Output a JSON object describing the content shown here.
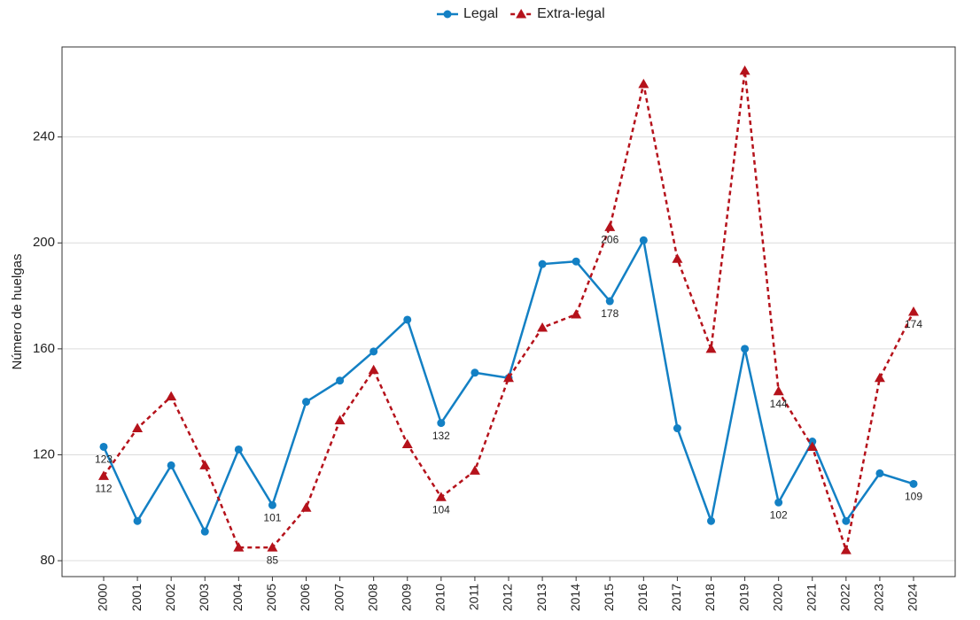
{
  "chart_data": {
    "type": "line",
    "y_label": "Número de huelgas",
    "categories": [
      "2000",
      "2001",
      "2002",
      "2003",
      "2004",
      "2005",
      "2006",
      "2007",
      "2008",
      "2009",
      "2010",
      "2011",
      "2012",
      "2013",
      "2014",
      "2015",
      "2016",
      "2017",
      "2018",
      "2019",
      "2020",
      "2021",
      "2022",
      "2023",
      "2024"
    ],
    "series": [
      {
        "name": "Legal",
        "color": "#1380c4",
        "marker": "circle",
        "dash": false,
        "values": [
          123,
          95,
          116,
          91,
          122,
          101,
          140,
          148,
          159,
          171,
          132,
          151,
          149,
          192,
          193,
          178,
          201,
          130,
          95,
          160,
          102,
          125,
          95,
          113,
          109
        ],
        "value_labels": [
          "123",
          null,
          null,
          null,
          null,
          "101",
          null,
          null,
          null,
          null,
          "132",
          null,
          null,
          null,
          null,
          "178",
          null,
          null,
          null,
          null,
          "102",
          null,
          null,
          null,
          "109"
        ]
      },
      {
        "name": "Extra-legal",
        "color": "#b5121b",
        "marker": "triangle",
        "dash": true,
        "values": [
          112,
          130,
          142,
          116,
          85,
          85,
          100,
          133,
          152,
          124,
          104,
          114,
          149,
          168,
          173,
          206,
          260,
          194,
          160,
          265,
          144,
          123,
          84,
          149,
          174
        ],
        "value_labels": [
          "112",
          null,
          null,
          null,
          null,
          "85",
          null,
          null,
          null,
          null,
          "104",
          null,
          null,
          null,
          null,
          "206",
          null,
          null,
          null,
          null,
          "144",
          null,
          null,
          null,
          "174"
        ]
      }
    ],
    "ylim": [
      74,
      274
    ],
    "yticks": [
      80,
      120,
      160,
      200,
      240
    ],
    "grid": true,
    "legend": "top"
  }
}
